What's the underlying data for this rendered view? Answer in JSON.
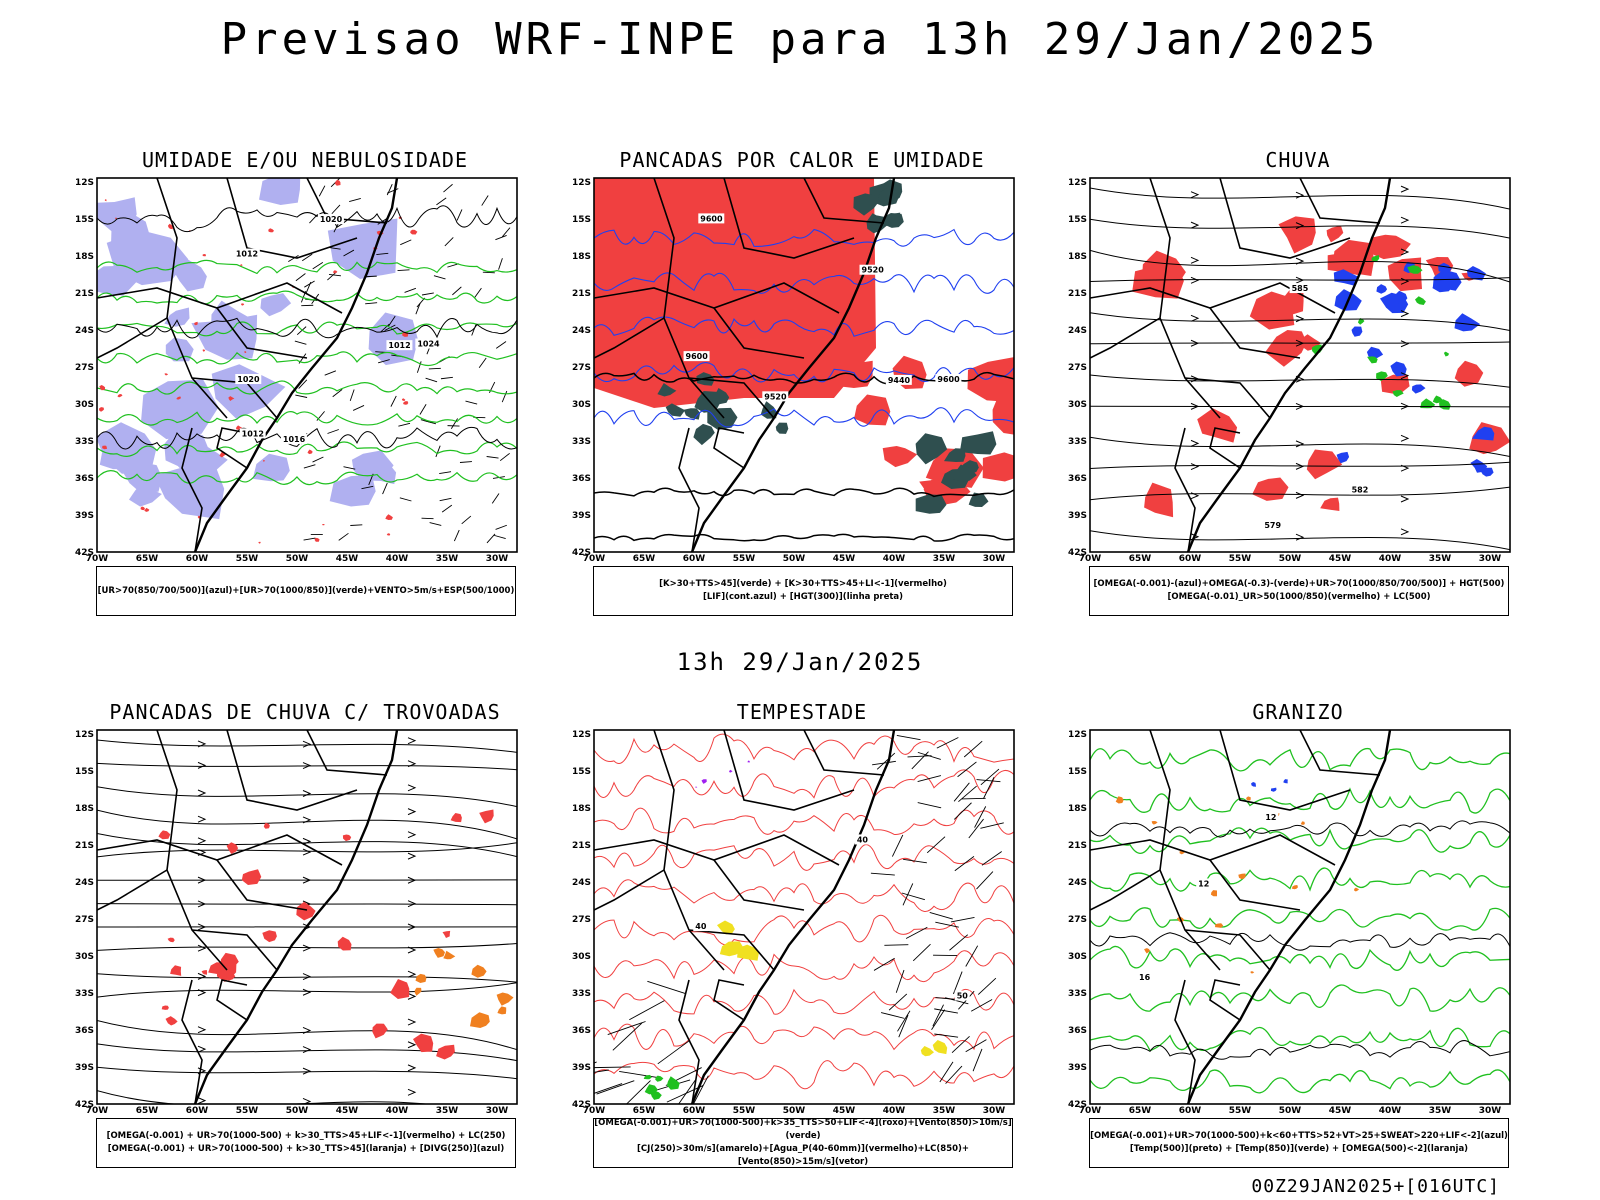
{
  "main_title": "Previsao WRF-INPE  para 13h 29/Jan/2025",
  "mid_title": "13h 29/Jan/2025",
  "footer": "00Z29JAN2025+[016UTC]",
  "lat_labels": [
    "12S",
    "15S",
    "18S",
    "21S",
    "24S",
    "27S",
    "30S",
    "33S",
    "36S",
    "39S",
    "42S"
  ],
  "lon_labels": [
    "70W",
    "65W",
    "60W",
    "55W",
    "50W",
    "45W",
    "40W",
    "35W",
    "30W"
  ],
  "colors": {
    "red": "#f04040",
    "blue": "#2040f0",
    "green": "#20c020",
    "lavender": "#b0b0f0",
    "darkgreen": "#2f4f4f",
    "orange": "#f08020",
    "yellow": "#f0e020",
    "purple": "#a020f0"
  },
  "panels": [
    {
      "title": "UMIDADE E/OU NEBULOSIDADE",
      "legend": [
        "[UR>70(850/700/500)](azul)+[UR>70(1000/850)](verde)+VENTO>5m/s+ESP(500/1000)"
      ],
      "contour_labels": [
        "1012",
        "1016",
        "1020",
        "1012",
        "1012",
        "1024",
        "1020"
      ]
    },
    {
      "title": "PANCADAS POR CALOR E UMIDADE",
      "legend": [
        "[K>30+TTS>45](verde) + [K>30+TTS>45+LI<-1](vermelho)",
        "[LIF](cont.azul) + [HGT(300)](linha preta)"
      ],
      "contour_labels": [
        "9600",
        "9600",
        "9520",
        "9520",
        "9600",
        "9440"
      ]
    },
    {
      "title": "CHUVA",
      "legend": [
        "[OMEGA(-0.001)-(azul)+OMEGA(-0.3)-(verde)+UR>70(1000/850/700/500)] + HGT(500)",
        "[OMEGA(-0.01)_UR>50(1000/850)(vermelho) + LC(500)"
      ],
      "contour_labels": [
        "585",
        "582",
        "579"
      ]
    },
    {
      "title": "PANCADAS DE CHUVA C/ TROVOADAS",
      "legend": [
        "[OMEGA(-0.001) + UR>70(1000-500) + k>30_TTS>45+LIF<-1](vermelho) + LC(250)",
        "[OMEGA(-0.001) + UR>70(1000-500) + k>30_TTS>45](laranja) + [DIVG(250)](azul)"
      ],
      "contour_labels": []
    },
    {
      "title": "TEMPESTADE",
      "legend": [
        "[OMEGA(-0.001)+UR>70(1000-500)+k>35_TTS>50+LIF<-4](roxo)+[Vento(850)>10m/s](verde)",
        "[CJ(250)>30m/s](amarelo)+[Agua_P(40-60mm)](vermelho)+LC(850)+[Vento(850)>15m/s](vetor)"
      ],
      "contour_labels": [
        "40",
        "50",
        "40"
      ]
    },
    {
      "title": "GRANIZO",
      "legend": [
        "[OMEGA(-0.001)+UR>70(1000-500)+k<60+TTS>52+VT>25+SWEAT>220+LIF<-2](azul)",
        "[Temp(500)](preto) + [Temp(850)](verde) + [OMEGA(500)<-2](laranja)"
      ],
      "contour_labels": [
        "16",
        "12",
        "12"
      ]
    }
  ]
}
